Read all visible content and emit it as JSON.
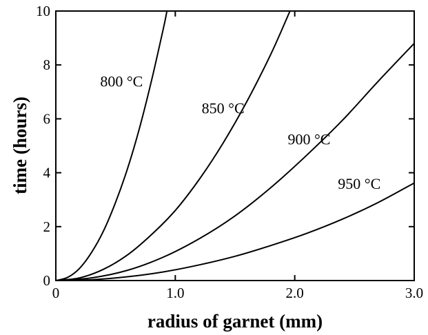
{
  "chart_data": {
    "type": "line",
    "title": "",
    "xlabel": "radius of garnet (mm)",
    "ylabel": "time (hours)",
    "xlim": [
      0,
      3.0
    ],
    "ylim": [
      0,
      10
    ],
    "xticks": [
      {
        "value": 0,
        "label": "0"
      },
      {
        "value": 1.0,
        "label": "1.0"
      },
      {
        "value": 2.0,
        "label": "2.0"
      },
      {
        "value": 3.0,
        "label": "3.0"
      }
    ],
    "yticks": [
      {
        "value": 0,
        "label": "0"
      },
      {
        "value": 2,
        "label": "2"
      },
      {
        "value": 4,
        "label": "4"
      },
      {
        "value": 6,
        "label": "6"
      },
      {
        "value": 8,
        "label": "8"
      },
      {
        "value": 10,
        "label": "10"
      }
    ],
    "grid": false,
    "legend": "none",
    "line_color": "#000000",
    "series": [
      {
        "name": "800 °C",
        "label_at": {
          "x": 0.55,
          "y": 7.2
        },
        "x": [
          0,
          0.1,
          0.2,
          0.3,
          0.4,
          0.5,
          0.6,
          0.7,
          0.8,
          0.9,
          0.93
        ],
        "y": [
          0,
          0.12,
          0.46,
          1.05,
          1.85,
          2.9,
          4.15,
          5.65,
          7.4,
          9.35,
          10.0
        ]
      },
      {
        "name": "850 °C",
        "label_at": {
          "x": 1.4,
          "y": 6.2
        },
        "x": [
          0,
          0.2,
          0.4,
          0.6,
          0.8,
          1.0,
          1.2,
          1.4,
          1.6,
          1.8,
          1.96
        ],
        "y": [
          0,
          0.1,
          0.42,
          0.95,
          1.7,
          2.6,
          3.75,
          5.1,
          6.65,
          8.4,
          10.0
        ]
      },
      {
        "name": "900 °C",
        "label_at": {
          "x": 2.12,
          "y": 5.05
        },
        "x": [
          0,
          0.3,
          0.6,
          0.9,
          1.2,
          1.5,
          1.8,
          2.1,
          2.4,
          2.7,
          3.0
        ],
        "y": [
          0,
          0.1,
          0.38,
          0.87,
          1.55,
          2.4,
          3.45,
          4.65,
          5.95,
          7.4,
          8.8
        ]
      },
      {
        "name": "950 °C",
        "label_at": {
          "x": 2.54,
          "y": 3.4
        },
        "x": [
          0,
          0.3,
          0.6,
          0.9,
          1.2,
          1.5,
          1.8,
          2.1,
          2.4,
          2.7,
          3.0
        ],
        "y": [
          0,
          0.03,
          0.14,
          0.32,
          0.58,
          0.9,
          1.3,
          1.75,
          2.28,
          2.9,
          3.62
        ]
      }
    ]
  }
}
